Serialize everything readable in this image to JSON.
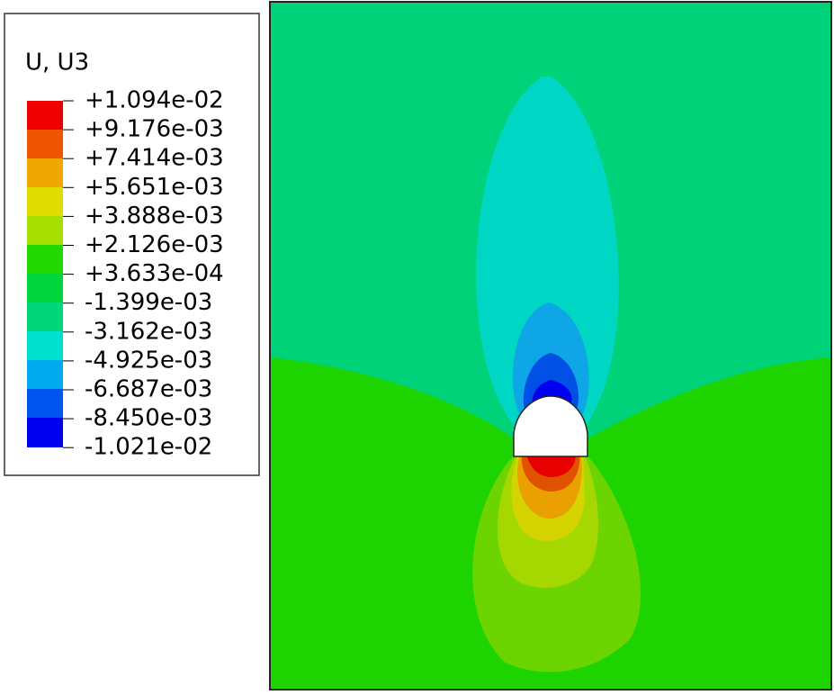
{
  "legend": {
    "title": "U, U3",
    "labels": [
      "+1.094e-02",
      "+9.176e-03",
      "+7.414e-03",
      "+5.651e-03",
      "+3.888e-03",
      "+2.126e-03",
      "+3.633e-04",
      "-1.399e-03",
      "-3.162e-03",
      "-4.925e-03",
      "-6.687e-03",
      "-8.450e-03",
      "-1.021e-02"
    ]
  }
}
